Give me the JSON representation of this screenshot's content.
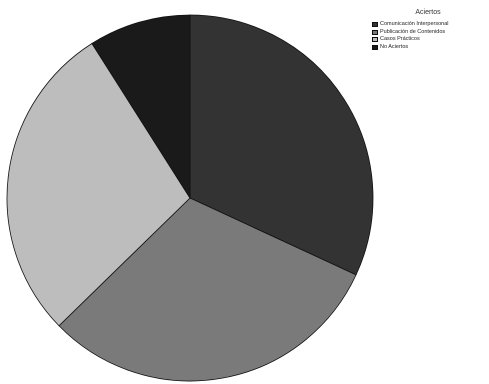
{
  "chart_data": {
    "type": "pie",
    "title": "",
    "legend": {
      "title": "Aciertos",
      "placement": "top-right"
    },
    "slices": [
      {
        "label": "Comunicación Interpersonal",
        "value": 31.9,
        "color": "#333333"
      },
      {
        "label": "Publicación de Contenidos",
        "value": 30.8,
        "color": "#7a7a7a"
      },
      {
        "label": "Casos Prácticos",
        "value": 28.3,
        "color": "#bdbdbd"
      },
      {
        "label": "No Aciertos",
        "value": 9.0,
        "color": "#1a1a1a"
      }
    ],
    "start_angle_deg": -90,
    "direction": "clockwise"
  }
}
